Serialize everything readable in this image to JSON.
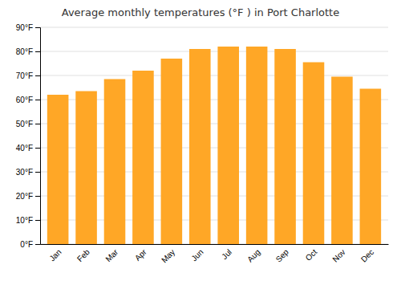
{
  "chart_data": {
    "type": "bar",
    "title": "Average monthly temperatures (°F ) in Port Charlotte",
    "categories": [
      "Jan",
      "Feb",
      "Mar",
      "Apr",
      "May",
      "Jun",
      "Jul",
      "Aug",
      "Sep",
      "Oct",
      "Nov",
      "Dec"
    ],
    "values": [
      62,
      63.5,
      68.5,
      72,
      77,
      81,
      82,
      82,
      81,
      75.5,
      69.5,
      64.5
    ],
    "color": "#FFA726",
    "ylim": [
      0,
      90
    ],
    "yticks": [
      {
        "value": 0,
        "label": "0°F"
      },
      {
        "value": 10,
        "label": "10°F"
      },
      {
        "value": 20,
        "label": "20°F"
      },
      {
        "value": 30,
        "label": "30°F"
      },
      {
        "value": 40,
        "label": "40°F"
      },
      {
        "value": 50,
        "label": "50°F"
      },
      {
        "value": 60,
        "label": "60°F"
      },
      {
        "value": 70,
        "label": "70°F"
      },
      {
        "value": 80,
        "label": "80°F"
      },
      {
        "value": 90,
        "label": "90°F"
      }
    ],
    "grid": true
  }
}
